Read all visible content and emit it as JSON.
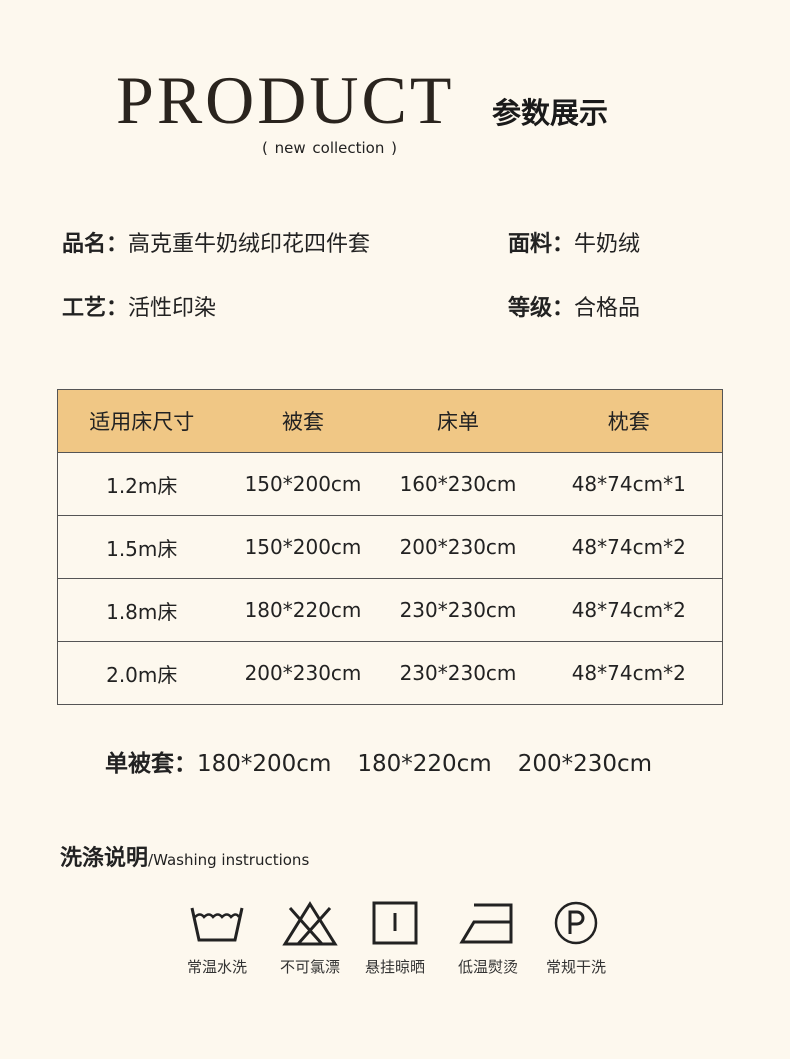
{
  "header": {
    "title": "PRODUCT",
    "subtitle_cn": "参数展示",
    "tagline": "(  new collection  )"
  },
  "info": [
    {
      "label": "品名：",
      "value": "高克重牛奶绒印花四件套"
    },
    {
      "label": "面料：",
      "value": "牛奶绒"
    },
    {
      "label": "工艺：",
      "value": "活性印染"
    },
    {
      "label": "等级：",
      "value": "合格品"
    }
  ],
  "table": {
    "header_color": "#f0c785",
    "columns": [
      "适用床尺寸",
      "被套",
      "床单",
      "枕套"
    ],
    "rows": [
      [
        "1.2m床",
        "150*200cm",
        "160*230cm",
        "48*74cm*1"
      ],
      [
        "1.5m床",
        "150*200cm",
        "200*230cm",
        "48*74cm*2"
      ],
      [
        "1.8m床",
        "180*220cm",
        "230*230cm",
        "48*74cm*2"
      ],
      [
        "2.0m床",
        "200*230cm",
        "230*230cm",
        "48*74cm*2"
      ]
    ]
  },
  "single_cover": {
    "label": "单被套：",
    "values": [
      "180*200cm",
      "180*220cm",
      "200*230cm"
    ]
  },
  "washing": {
    "title_cn": "洗涤说明",
    "title_en": "/Washing instructions",
    "items": [
      {
        "icon": "wash-basin-icon",
        "label": "常温水洗"
      },
      {
        "icon": "no-bleach-icon",
        "label": "不可氯漂"
      },
      {
        "icon": "hang-dry-icon",
        "label": "悬挂晾晒"
      },
      {
        "icon": "low-iron-icon",
        "label": "低温熨烫"
      },
      {
        "icon": "dry-clean-p-icon",
        "label": "常规干洗"
      }
    ]
  }
}
